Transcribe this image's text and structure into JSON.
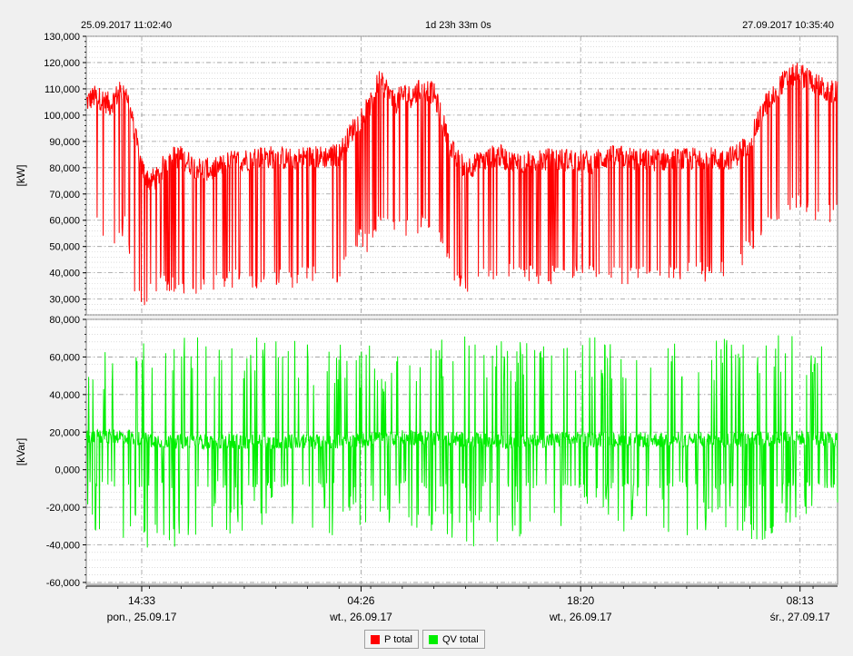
{
  "header": {
    "start": "25.09.2017 11:02:40",
    "duration": "1d 23h 33m 0s",
    "end": "27.09.2017 10:35:40"
  },
  "colors": {
    "p_total": "#ff0000",
    "qv_total": "#00ee00",
    "grid": "#9a9a9a",
    "plot_bg": "#ffffff"
  },
  "legend": [
    {
      "label": "P total",
      "color": "#ff0000"
    },
    {
      "label": "QV total",
      "color": "#00ee00"
    }
  ],
  "chart_data": [
    {
      "type": "line",
      "ylabel": "[kW]",
      "ylim": [
        24000,
        130000
      ],
      "yticks": [
        "130,000",
        "120,000",
        "110,000",
        "100,000",
        "90,000",
        "80,000",
        "70,000",
        "60,000",
        "50,000",
        "40,000",
        "30,000"
      ],
      "ytick_values": [
        130000,
        120000,
        110000,
        100000,
        90000,
        80000,
        70000,
        60000,
        50000,
        40000,
        30000
      ],
      "grid": true,
      "series": [
        {
          "name": "P total",
          "x_hours": [
            0,
            0.5,
            1,
            1.5,
            2,
            2.5,
            3,
            3.5,
            4,
            4.5,
            5,
            5.5,
            6,
            7,
            8,
            9,
            10,
            11,
            12,
            13,
            14,
            15,
            16,
            17,
            18,
            18.5,
            19,
            19.5,
            20,
            20.5,
            21,
            21.5,
            22,
            22.5,
            23,
            23.5,
            24,
            25,
            26,
            27,
            28,
            29,
            30,
            31,
            32,
            33,
            34,
            35,
            36,
            37,
            38,
            39,
            40,
            41,
            42,
            43,
            44,
            45,
            46,
            47,
            47.5
          ],
          "base": [
            105000,
            107000,
            106000,
            104000,
            108000,
            110000,
            95000,
            80000,
            75000,
            76000,
            82000,
            84000,
            84000,
            80000,
            79000,
            82000,
            83000,
            84000,
            84000,
            83000,
            84000,
            84000,
            85000,
            96000,
            104000,
            113000,
            110000,
            104000,
            108000,
            107000,
            109000,
            110000,
            108000,
            99000,
            88000,
            83000,
            80000,
            82000,
            85000,
            82000,
            82000,
            83000,
            83000,
            83000,
            82000,
            84000,
            84000,
            83000,
            83000,
            83000,
            83000,
            84000,
            83000,
            84000,
            90000,
            104000,
            112000,
            116000,
            113000,
            108000,
            110000
          ],
          "low": [
            55000,
            60000,
            50000,
            48000,
            50000,
            55000,
            30000,
            27000,
            27000,
            33000,
            32000,
            31000,
            31000,
            31000,
            31000,
            33000,
            34000,
            34000,
            34000,
            34000,
            35000,
            35000,
            36000,
            50000,
            47000,
            55000,
            55000,
            54000,
            54000,
            54000,
            55000,
            56000,
            56000,
            47000,
            38000,
            33000,
            31000,
            35000,
            38000,
            38000,
            36000,
            35000,
            35000,
            35000,
            35000,
            35000,
            35000,
            35000,
            35000,
            36000,
            37000,
            36000,
            37000,
            37000,
            48000,
            53000,
            60000,
            62000,
            60000,
            58000,
            58000
          ]
        }
      ]
    },
    {
      "type": "line",
      "ylabel": "[kVar]",
      "ylim": [
        -61000,
        80000
      ],
      "yticks": [
        "80,000",
        "60,000",
        "40,000",
        "20,000",
        "0,000",
        "-20,000",
        "-40,000",
        "-60,000"
      ],
      "ytick_values": [
        80000,
        60000,
        40000,
        20000,
        0,
        -20000,
        -40000,
        -60000
      ],
      "grid": true,
      "series": [
        {
          "name": "QV total",
          "x_hours": [
            0,
            2,
            4,
            6,
            8,
            10,
            12,
            14,
            16,
            18,
            20,
            22,
            24,
            26,
            28,
            30,
            32,
            34,
            36,
            38,
            40,
            42,
            44,
            46,
            47.5
          ],
          "base": [
            17000,
            18000,
            16000,
            15000,
            15000,
            15000,
            15000,
            15000,
            15000,
            16000,
            17000,
            17000,
            16000,
            15000,
            15000,
            16000,
            16000,
            16000,
            16000,
            16000,
            16000,
            16000,
            17000,
            17000,
            16000
          ],
          "peak": [
            62000,
            65000,
            70000,
            71000,
            70000,
            70000,
            72000,
            70000,
            70000,
            67000,
            66000,
            72000,
            73000,
            72000,
            70000,
            71000,
            72000,
            72000,
            72000,
            72000,
            72000,
            72000,
            72000,
            72000,
            65000
          ],
          "trough": [
            -30000,
            -40000,
            -45000,
            -40000,
            -38000,
            -35000,
            -33000,
            -35000,
            -35000,
            -33000,
            -32000,
            -34000,
            -42000,
            -40000,
            -35000,
            -32000,
            -32000,
            -33000,
            -34000,
            -36000,
            -38000,
            -38000,
            -38000,
            -30000,
            -28000
          ]
        }
      ]
    }
  ],
  "x_axis": {
    "ticks": [
      {
        "hours": 3.508,
        "time": "14:33",
        "date": "pon., 25.09.17"
      },
      {
        "hours": 17.39,
        "time": "04:26",
        "date": "wt., 26.09.17"
      },
      {
        "hours": 31.29,
        "time": "18:20",
        "date": "wt., 26.09.17"
      },
      {
        "hours": 45.175,
        "time": "08:13",
        "date": "śr., 27.09.17"
      }
    ],
    "range_hours": [
      0,
      47.55
    ]
  }
}
